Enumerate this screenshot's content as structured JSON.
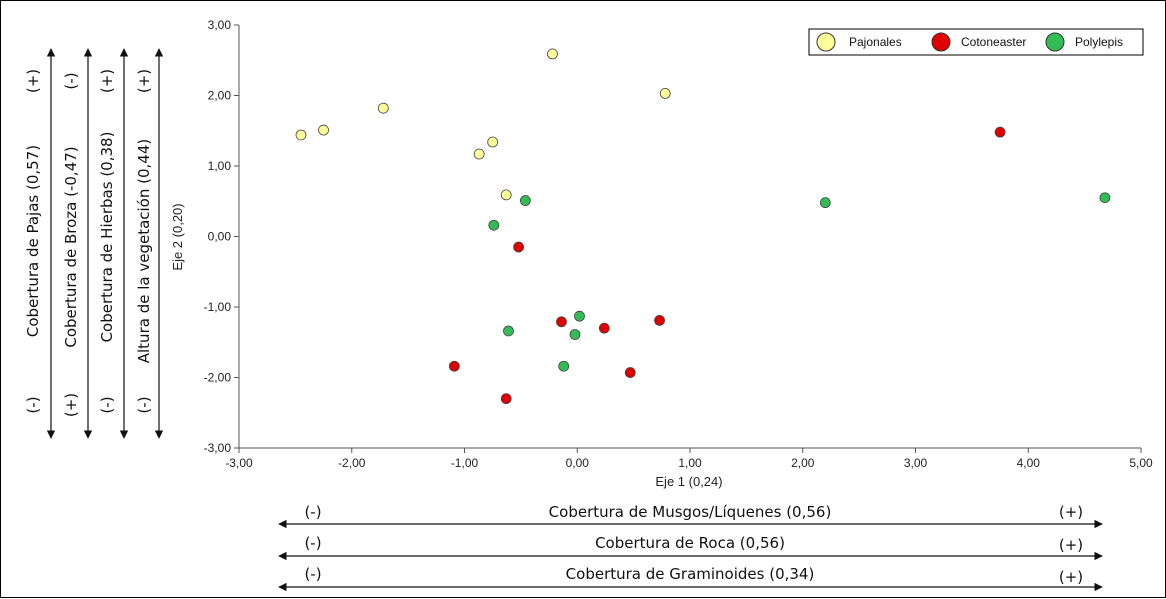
{
  "chart_data": {
    "type": "scatter",
    "xlabel": "Eje 1 (0,24)",
    "ylabel": "Eje 2 (0,20)",
    "xlim": [
      -3,
      5
    ],
    "ylim": [
      -3,
      3
    ],
    "x_ticks": [
      -3,
      -2,
      -1,
      0,
      1,
      2,
      3,
      4,
      5
    ],
    "y_ticks": [
      -3,
      -2,
      -1,
      0,
      1,
      2,
      3
    ],
    "x_tick_labels": [
      "-3,00",
      "-2,00",
      "-1,00",
      "0,00",
      "1,00",
      "2,00",
      "3,00",
      "4,00",
      "5,00"
    ],
    "y_tick_labels": [
      "-3,00",
      "-2,00",
      "-1,00",
      "0,00",
      "1,00",
      "2,00",
      "3,00"
    ],
    "grid": false,
    "legend_position": "top-right",
    "series": [
      {
        "name": "Pajonales",
        "color": "#ffff99",
        "points": [
          {
            "x": -2.45,
            "y": 1.44
          },
          {
            "x": -2.25,
            "y": 1.51
          },
          {
            "x": -1.72,
            "y": 1.82
          },
          {
            "x": -0.87,
            "y": 1.17
          },
          {
            "x": -0.75,
            "y": 1.34
          },
          {
            "x": -0.63,
            "y": 0.59
          },
          {
            "x": -0.22,
            "y": 2.59
          },
          {
            "x": 0.78,
            "y": 2.03
          }
        ]
      },
      {
        "name": "Cotoneaster",
        "color": "#e00000",
        "points": [
          {
            "x": -1.09,
            "y": -1.84
          },
          {
            "x": -0.63,
            "y": -2.3
          },
          {
            "x": -0.52,
            "y": -0.15
          },
          {
            "x": -0.14,
            "y": -1.21
          },
          {
            "x": 0.24,
            "y": -1.3
          },
          {
            "x": 0.47,
            "y": -1.93
          },
          {
            "x": 0.73,
            "y": -1.19
          },
          {
            "x": 3.75,
            "y": 1.48
          }
        ]
      },
      {
        "name": "Polylepis",
        "color": "#33bb55",
        "points": [
          {
            "x": -0.74,
            "y": 0.16
          },
          {
            "x": -0.46,
            "y": 0.51
          },
          {
            "x": -0.61,
            "y": -1.34
          },
          {
            "x": -0.12,
            "y": -1.84
          },
          {
            "x": -0.02,
            "y": -1.39
          },
          {
            "x": 0.02,
            "y": -1.13
          },
          {
            "x": 2.2,
            "y": 0.48
          },
          {
            "x": 4.68,
            "y": 0.55
          }
        ]
      }
    ],
    "left_vectors": [
      {
        "label": "Cobertura de Pajas (0,57)",
        "top_sign": "(+)",
        "bottom_sign": "(-)"
      },
      {
        "label": "Cobertura de Broza (-0,47)",
        "top_sign": "(-)",
        "bottom_sign": "(+)"
      },
      {
        "label": "Cobertura de Hierbas (0,38)",
        "top_sign": "(+)",
        "bottom_sign": "(-)"
      },
      {
        "label": "Altura de la vegetación (0,44)",
        "top_sign": "(+)",
        "bottom_sign": "(-)"
      }
    ],
    "bottom_vectors": [
      {
        "label": "Cobertura de Musgos/Líquenes (0,56)",
        "left_sign": "(-)",
        "right_sign": "(+)"
      },
      {
        "label": "Cobertura de Roca (0,56)",
        "left_sign": "(-)",
        "right_sign": "(+)"
      },
      {
        "label": "Cobertura de Graminoides (0,34)",
        "left_sign": "(-)",
        "right_sign": "(+)"
      }
    ]
  }
}
